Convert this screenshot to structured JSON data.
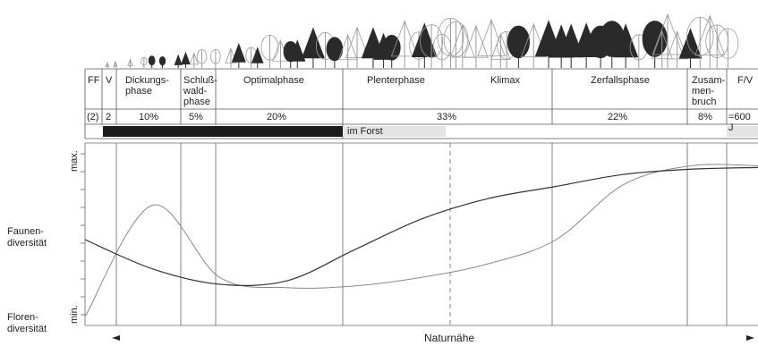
{
  "phases": [
    {
      "id": "ff",
      "label": "FF",
      "pct": "(2)"
    },
    {
      "id": "v",
      "label": "V",
      "pct": "2"
    },
    {
      "id": "dickung",
      "label": "Dickungs-\nphase",
      "pct": "10%"
    },
    {
      "id": "schluss",
      "label": "Schluß-\nwald-\nphase",
      "pct": "5%"
    },
    {
      "id": "optimal",
      "label": "Optimalphase",
      "pct": "20%"
    },
    {
      "id": "plenter",
      "label": "Plenterphase",
      "pct": ""
    },
    {
      "id": "klimax",
      "label": "Klimax",
      "pct": "33%"
    },
    {
      "id": "zerfall",
      "label": "Zerfallsphase",
      "pct": "22%"
    },
    {
      "id": "zusammen",
      "label": "Zusam-\nmen-\nbruch",
      "pct": "8%"
    },
    {
      "id": "fv",
      "label": "F/V",
      "pct": "=600 J"
    }
  ],
  "forst_label": "im  Forst",
  "yaxis": {
    "max": "max.",
    "min": "min."
  },
  "left_labels": {
    "fauna": "Faunen-\ndiversität",
    "flora": "Floren-\ndiversität"
  },
  "xaxis_label": "Naturnähe",
  "chart_data": {
    "type": "line",
    "x": [
      0,
      10,
      20,
      30,
      40,
      50,
      60,
      70,
      80,
      90,
      100
    ],
    "series": [
      {
        "id": "fauna",
        "color": "#333333",
        "values": [
          0.5,
          0.33,
          0.24,
          0.26,
          0.44,
          0.62,
          0.74,
          0.81,
          0.88,
          0.91,
          0.92
        ]
      },
      {
        "id": "flora",
        "color": "#888888",
        "values": [
          0.05,
          0.7,
          0.28,
          0.22,
          0.23,
          0.28,
          0.36,
          0.5,
          0.82,
          0.93,
          0.93
        ]
      }
    ],
    "ylim": [
      0,
      1
    ],
    "grid": false
  }
}
